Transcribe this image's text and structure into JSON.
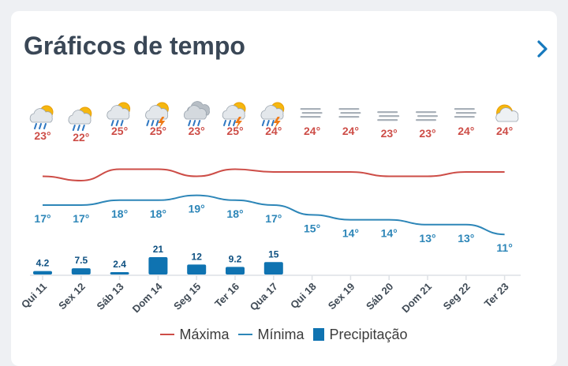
{
  "header": {
    "title": "Gráficos de tempo",
    "next_icon": "chevron-right-icon"
  },
  "colors": {
    "max": "#cd4d47",
    "min": "#2d86b8",
    "precip": "#0f73b1",
    "text": "#3a4756"
  },
  "days": [
    {
      "label": "Qui 11",
      "icon": "rain-sun-icon",
      "max": "23°",
      "min": "17°",
      "precip": "4.2"
    },
    {
      "label": "Sex 12",
      "icon": "rain-sun-icon",
      "max": "22°",
      "min": "17°",
      "precip": "7.5"
    },
    {
      "label": "Sáb 13",
      "icon": "rain-sun-icon",
      "max": "25°",
      "min": "18°",
      "precip": "2.4"
    },
    {
      "label": "Dom 14",
      "icon": "storm-sun-icon",
      "max": "25°",
      "min": "18°",
      "precip": "21"
    },
    {
      "label": "Seg 15",
      "icon": "rain-cloud-icon",
      "max": "23°",
      "min": "19°",
      "precip": "12"
    },
    {
      "label": "Ter 16",
      "icon": "storm-sun-icon",
      "max": "25°",
      "min": "18°",
      "precip": "9.2"
    },
    {
      "label": "Qua 17",
      "icon": "storm-sun-icon",
      "max": "24°",
      "min": "17°",
      "precip": "15"
    },
    {
      "label": "Qui 18",
      "icon": "fog-icon",
      "max": "24°",
      "min": "15°",
      "precip": ""
    },
    {
      "label": "Sex 19",
      "icon": "fog-icon",
      "max": "24°",
      "min": "14°",
      "precip": ""
    },
    {
      "label": "Sáb 20",
      "icon": "fog-icon",
      "max": "23°",
      "min": "14°",
      "precip": ""
    },
    {
      "label": "Dom 21",
      "icon": "fog-icon",
      "max": "23°",
      "min": "13°",
      "precip": ""
    },
    {
      "label": "Seg 22",
      "icon": "fog-icon",
      "max": "24°",
      "min": "13°",
      "precip": ""
    },
    {
      "label": "Ter 23",
      "icon": "partly-cloudy-icon",
      "max": "24°",
      "min": "11°",
      "precip": ""
    }
  ],
  "chart_data": {
    "type": "line",
    "categories": [
      "Qui 11",
      "Sex 12",
      "Sáb 13",
      "Dom 14",
      "Seg 15",
      "Ter 16",
      "Qua 17",
      "Qui 18",
      "Sex 19",
      "Sáb 20",
      "Dom 21",
      "Seg 22",
      "Ter 23"
    ],
    "series": [
      {
        "name": "Máxima",
        "values": [
          23,
          22,
          25,
          25,
          23,
          25,
          24,
          24,
          24,
          23,
          23,
          24,
          24
        ]
      },
      {
        "name": "Mínima",
        "values": [
          17,
          17,
          18,
          18,
          19,
          18,
          17,
          15,
          14,
          14,
          13,
          13,
          11
        ]
      },
      {
        "name": "Precipitação",
        "type": "bar",
        "values": [
          4.2,
          7.5,
          2.4,
          21,
          12,
          9.2,
          15,
          0,
          0,
          0,
          0,
          0,
          0
        ]
      }
    ],
    "legend_position": "bottom"
  },
  "legend": {
    "max": "Máxima",
    "min": "Mínima",
    "precip": "Precipitação"
  }
}
